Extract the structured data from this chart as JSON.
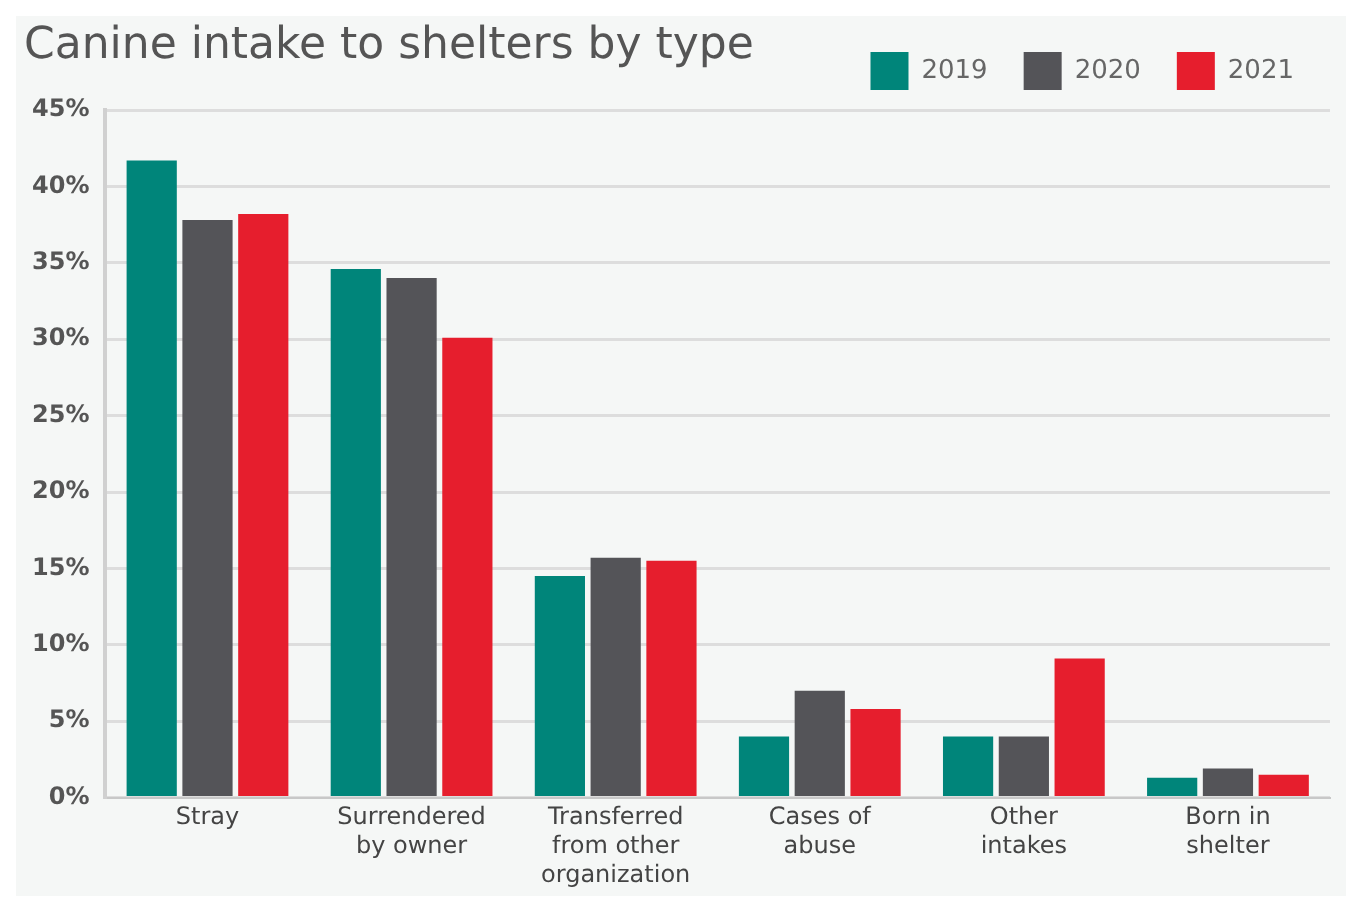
{
  "chart_data": {
    "type": "bar",
    "title": "Canine intake to shelters by type",
    "categories": [
      "Stray",
      "Surrendered by owner",
      "Transferred from other organization",
      "Cases of abuse",
      "Other intakes",
      "Born in shelter"
    ],
    "series": [
      {
        "name": "2019",
        "color": "#00857a",
        "values": [
          41.7,
          34.6,
          14.5,
          4.0,
          4.0,
          1.3
        ]
      },
      {
        "name": "2020",
        "color": "#545458",
        "values": [
          37.8,
          34.0,
          15.7,
          7.0,
          4.0,
          1.9
        ]
      },
      {
        "name": "2021",
        "color": "#e61e2d",
        "values": [
          38.2,
          30.1,
          15.5,
          5.8,
          9.1,
          1.5
        ]
      }
    ],
    "ylim": [
      0,
      45
    ],
    "yticks": [
      {
        "value": 0,
        "label": "0%"
      },
      {
        "value": 5,
        "label": "5%"
      },
      {
        "value": 10,
        "label": "10%"
      },
      {
        "value": 15,
        "label": "15%"
      },
      {
        "value": 20,
        "label": "20%"
      },
      {
        "value": 25,
        "label": "25%"
      },
      {
        "value": 30,
        "label": "30%"
      },
      {
        "value": 35,
        "label": "35%"
      },
      {
        "value": 40,
        "label": "40%"
      },
      {
        "value": 45,
        "label": "45%"
      }
    ],
    "grid": "y",
    "legend": "top right"
  }
}
